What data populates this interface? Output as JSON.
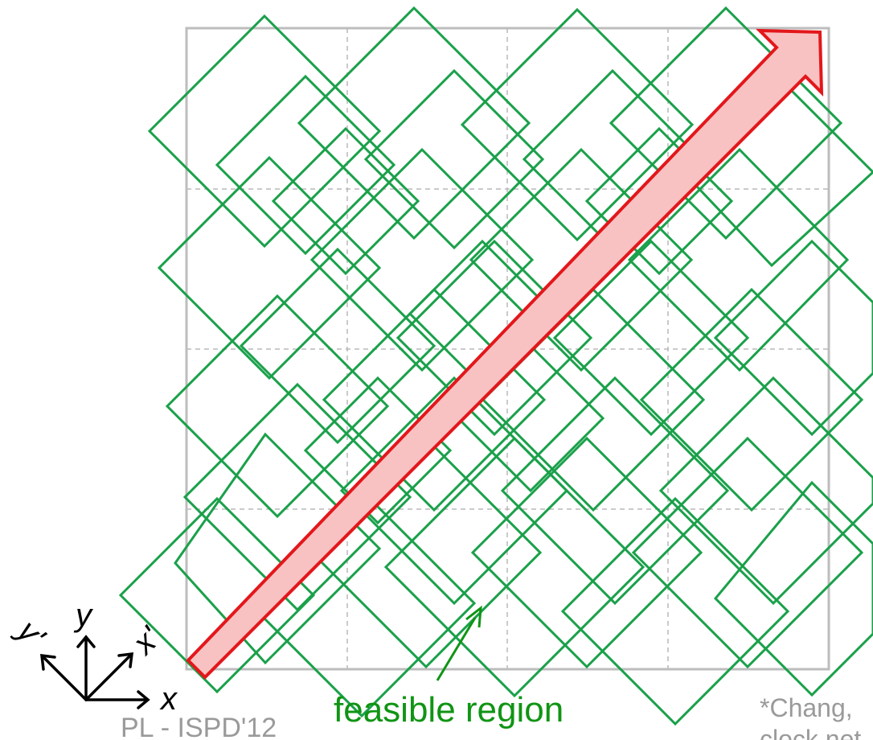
{
  "axes": {
    "x": "x",
    "y": "y",
    "x_rot": "x'",
    "y_rot": "y'"
  },
  "annotation": {
    "label": "feasible region"
  },
  "footer": {
    "left": "PL - ISPD'12",
    "citation_line1": "*Chang,",
    "citation_line2": "clock net"
  },
  "colors": {
    "diamond": "#1aa04a",
    "arrow_fill": "#f9c2c2",
    "arrow_stroke": "#e3171b",
    "label_green": "#109414",
    "grid": "#bdbdbd"
  },
  "grid": {
    "rows": 4,
    "cols": 4
  },
  "diamond_count": 38
}
